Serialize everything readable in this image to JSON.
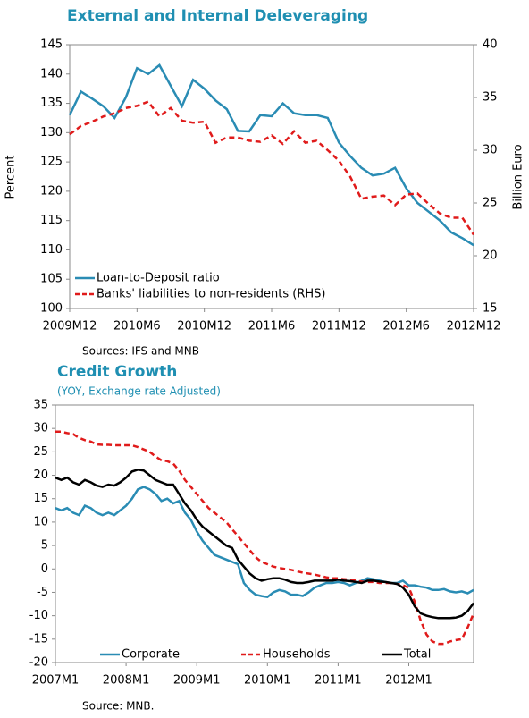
{
  "chart_data": [
    {
      "type": "line",
      "title": "External and Internal Deleveraging",
      "ylabel": "Percent",
      "y2label": "Billion Euro",
      "note": "Sources: IFS and MNB",
      "legend": "lower left",
      "grid": false,
      "categories": [
        "2009M12",
        null,
        null,
        null,
        null,
        null,
        "2010M6",
        null,
        null,
        null,
        null,
        null,
        "2010M12",
        null,
        null,
        null,
        null,
        null,
        "2011M6",
        null,
        null,
        null,
        null,
        null,
        "2011M12",
        null,
        null,
        null,
        null,
        null,
        "2012M6",
        null,
        null,
        null,
        null,
        null,
        "2012M12"
      ],
      "ylim": [
        100,
        145
      ],
      "yticks": [
        100,
        105,
        110,
        115,
        120,
        125,
        130,
        135,
        140,
        145
      ],
      "y2lim": [
        15,
        40
      ],
      "y2ticks": [
        15,
        20,
        25,
        30,
        35,
        40
      ],
      "series": [
        {
          "name": "Loan-to-Deposit ratio",
          "color": "#2a8cb4",
          "line_style": "solid",
          "values": [
            133,
            137,
            135.8,
            134.5,
            132.5,
            136,
            141,
            140,
            141.5,
            138,
            134.5,
            139,
            137.5,
            135.5,
            134,
            130.3,
            130.2,
            133,
            132.8,
            135,
            133.3,
            133,
            133,
            132.5,
            128.3,
            126,
            124,
            122.7,
            123,
            124,
            120.5,
            118,
            116.5,
            115,
            113,
            112,
            110.8
          ]
        },
        {
          "name": "Banks' liabilities to non-residents (RHS)",
          "color": "#e01b1b",
          "line_style": "dashed",
          "axis": "y2",
          "values": [
            31.5,
            32.3,
            32.7,
            33.2,
            33.5,
            34,
            34.2,
            34.6,
            33.2,
            34,
            32.8,
            32.6,
            32.7,
            30.7,
            31.2,
            31.2,
            30.9,
            30.8,
            31.4,
            30.6,
            31.8,
            30.7,
            30.9,
            30,
            29,
            27.5,
            25.4,
            25.6,
            25.7,
            24.8,
            25.8,
            25.9,
            24.9,
            24,
            23.6,
            23.6,
            22
          ]
        }
      ]
    },
    {
      "type": "line",
      "title": "Credit Growth",
      "subtitle": "(YOY, Exchange rate Adjusted)",
      "note": "Source: MNB.",
      "legend": "bottom",
      "grid": false,
      "categories": [
        "2007M1",
        null,
        null,
        null,
        null,
        null,
        null,
        null,
        null,
        null,
        null,
        null,
        "2008M1",
        null,
        null,
        null,
        null,
        null,
        null,
        null,
        null,
        null,
        null,
        null,
        "2009M1",
        null,
        null,
        null,
        null,
        null,
        null,
        null,
        null,
        null,
        null,
        null,
        "2010M1",
        null,
        null,
        null,
        null,
        null,
        null,
        null,
        null,
        null,
        null,
        null,
        "2011M1",
        null,
        null,
        null,
        null,
        null,
        null,
        null,
        null,
        null,
        null,
        null,
        "2012M1",
        null,
        null,
        null,
        null,
        null,
        null,
        null,
        null,
        null,
        null,
        null
      ],
      "ylim": [
        -20,
        35
      ],
      "yticks": [
        -20,
        -15,
        -10,
        -5,
        0,
        5,
        10,
        15,
        20,
        25,
        30,
        35
      ],
      "series": [
        {
          "name": "Corporate",
          "color": "#2a8cb4",
          "line_style": "solid",
          "values": [
            13,
            12.5,
            13,
            12,
            11.5,
            13.5,
            13,
            12,
            11.5,
            12,
            11.5,
            12.5,
            13.5,
            15,
            17,
            17.5,
            17,
            16,
            14.5,
            15,
            14,
            14.5,
            12,
            10.5,
            8,
            6,
            4.5,
            3,
            2.5,
            2,
            1.5,
            1,
            -3,
            -4.5,
            -5.5,
            -5.8,
            -6,
            -5,
            -4.5,
            -4.8,
            -5.5,
            -5.5,
            -5.8,
            -5,
            -4,
            -3.5,
            -3,
            -3,
            -2.8,
            -3,
            -3.5,
            -3,
            -2.5,
            -2,
            -2.2,
            -2.5,
            -2.8,
            -3,
            -3,
            -2.5,
            -3.5,
            -3.5,
            -3.8,
            -4,
            -4.5,
            -4.5,
            -4.3,
            -4.8,
            -5,
            -4.8,
            -5.2,
            -4.5
          ]
        },
        {
          "name": "Households",
          "color": "#e01b1b",
          "line_style": "dashed",
          "values": [
            29.3,
            29.3,
            29,
            28.8,
            28,
            27.5,
            27.2,
            26.6,
            26.5,
            26.5,
            26.4,
            26.4,
            26.4,
            26.4,
            26,
            25.5,
            25,
            24,
            23.2,
            23,
            22.5,
            21,
            19,
            17.5,
            16,
            14.5,
            13,
            12,
            11,
            10,
            8.5,
            7,
            5.5,
            4,
            2.5,
            1.5,
            1,
            0.5,
            0.2,
            0,
            -0.2,
            -0.5,
            -0.8,
            -1,
            -1.2,
            -1.5,
            -1.8,
            -2,
            -2,
            -2.2,
            -2.3,
            -2.5,
            -2.7,
            -2.8,
            -2.8,
            -3,
            -3,
            -3,
            -3.2,
            -3.5,
            -4,
            -7,
            -11,
            -14,
            -15.5,
            -16,
            -16,
            -15.5,
            -15.2,
            -15,
            -12.5,
            -9.5
          ]
        },
        {
          "name": "Total",
          "color": "#000000",
          "line_style": "solid",
          "values": [
            19.5,
            19,
            19.5,
            18.5,
            18,
            19,
            18.5,
            17.8,
            17.5,
            18,
            17.8,
            18.5,
            19.5,
            20.8,
            21.2,
            21,
            20,
            19,
            18.5,
            18,
            18,
            16,
            14,
            12.5,
            10.5,
            9,
            8,
            7,
            6,
            5,
            4.5,
            2,
            0.5,
            -1,
            -2,
            -2.5,
            -2.2,
            -2,
            -2,
            -2.3,
            -2.8,
            -3,
            -3,
            -2.8,
            -2.5,
            -2.5,
            -2.5,
            -2.5,
            -2.3,
            -2.5,
            -2.6,
            -2.8,
            -3,
            -2.5,
            -2.5,
            -2.7,
            -2.8,
            -3,
            -3.2,
            -4,
            -5.5,
            -8,
            -9.5,
            -10,
            -10.3,
            -10.5,
            -10.5,
            -10.5,
            -10.4,
            -10,
            -9,
            -7.3
          ]
        }
      ]
    }
  ]
}
